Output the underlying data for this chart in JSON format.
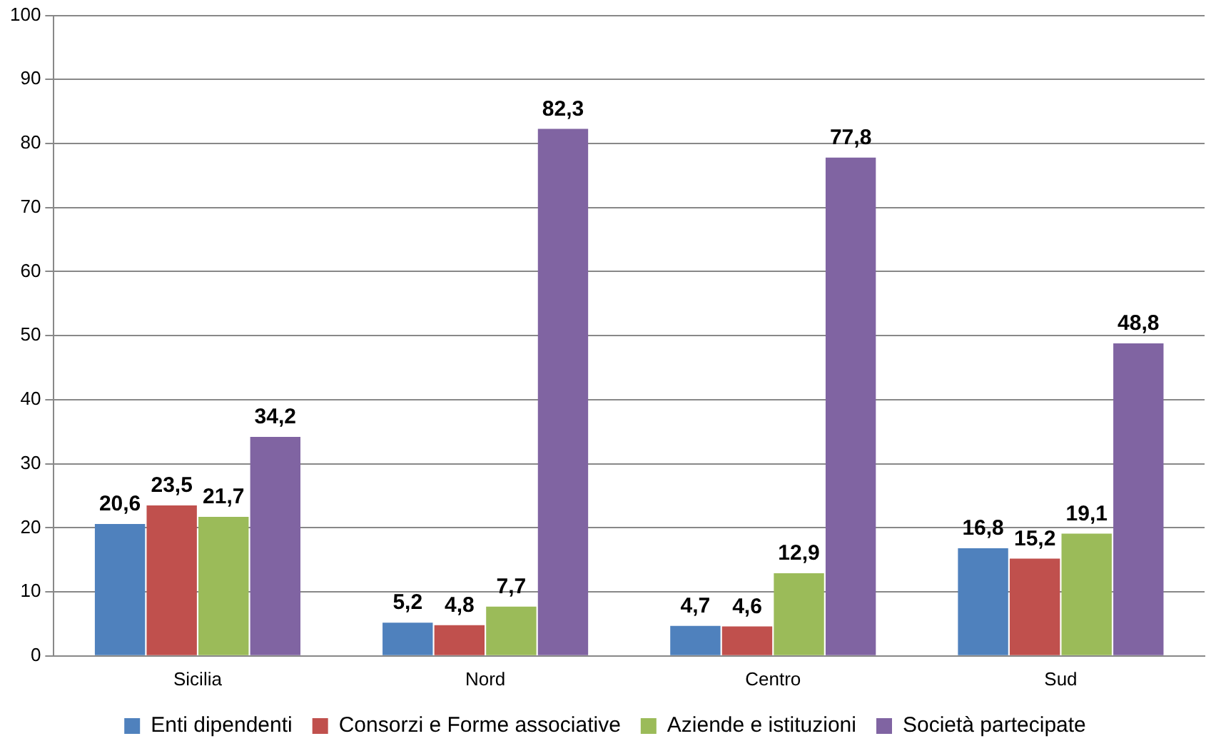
{
  "chart_data": {
    "type": "bar",
    "categories": [
      "Sicilia",
      "Nord",
      "Centro",
      "Sud"
    ],
    "series": [
      {
        "name": "Enti dipendenti",
        "color": "#4f81bd",
        "values": [
          20.6,
          5.2,
          4.7,
          16.8
        ],
        "value_labels": [
          "20,6",
          "5,2",
          "4,7",
          "16,8"
        ]
      },
      {
        "name": "Consorzi e Forme associative",
        "color": "#c0504d",
        "values": [
          23.5,
          4.8,
          4.6,
          15.2
        ],
        "value_labels": [
          "23,5",
          "4,8",
          "4,6",
          "15,2"
        ]
      },
      {
        "name": "Aziende e istituzioni",
        "color": "#9bbb59",
        "values": [
          21.7,
          7.7,
          12.9,
          19.1
        ],
        "value_labels": [
          "21,7",
          "7,7",
          "12,9",
          "19,1"
        ]
      },
      {
        "name": "Società partecipate",
        "color": "#8064a2",
        "values": [
          34.2,
          82.3,
          77.8,
          48.8
        ],
        "value_labels": [
          "34,2",
          "82,3",
          "77,8",
          "48,8"
        ]
      }
    ],
    "ylim": [
      0,
      100
    ],
    "yticks": [
      0,
      10,
      20,
      30,
      40,
      50,
      60,
      70,
      80,
      90,
      100
    ],
    "grid": "y",
    "legend": "bottom"
  }
}
